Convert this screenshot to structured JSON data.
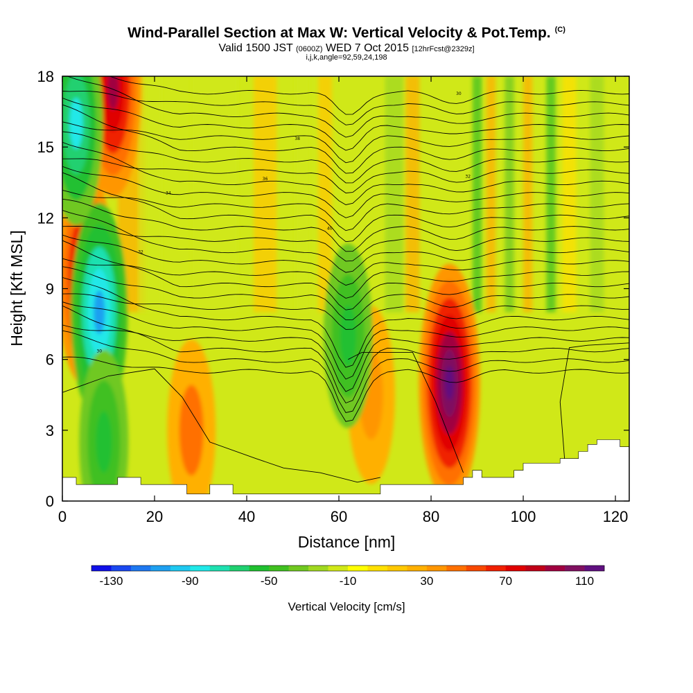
{
  "title": {
    "main": "Wind-Parallel Section at Max W: Vertical Velocity & Pot.Temp.",
    "copyright": "(C)",
    "valid_prefix": "Valid 1500 JST",
    "valid_utc": "(0600Z)",
    "valid_date": "WED 7 Oct 2015",
    "forecast": "[12hrFcst@2329z]",
    "indices": "i,j,k,angle=92,59,24,198"
  },
  "chart_data": {
    "type": "heatmap",
    "title": "Wind-Parallel Section at Max W: Vertical Velocity & Pot.Temp.",
    "xlabel": "Distance [nm]",
    "ylabel": "Height [Kft MSL]",
    "xlim": [
      0,
      123
    ],
    "ylim": [
      0,
      18
    ],
    "x_ticks": [
      "0",
      "20",
      "40",
      "60",
      "80",
      "100",
      "120"
    ],
    "y_ticks": [
      "0",
      "3",
      "6",
      "9",
      "12",
      "15",
      "18"
    ],
    "colorbar": {
      "label": "Vertical Velocity [cm/s]",
      "tick_labels": [
        "-130",
        "-90",
        "-50",
        "-10",
        "30",
        "70",
        "110"
      ],
      "colors": [
        "#1010e8",
        "#1a48f0",
        "#1e78f0",
        "#1ea0f0",
        "#1ec8f0",
        "#20e8e8",
        "#1ee0b0",
        "#20d070",
        "#20c030",
        "#40c020",
        "#70c820",
        "#a0d820",
        "#d0e818",
        "#ffff00",
        "#ffe000",
        "#ffc800",
        "#ffb000",
        "#ff9600",
        "#ff7000",
        "#f84800",
        "#f02000",
        "#e00000",
        "#c00018",
        "#a00040",
        "#801060",
        "#601080"
      ]
    },
    "updraft_cells": [
      {
        "x": 84,
        "height_kft": 5,
        "w_cm_s": 130
      },
      {
        "x": 5,
        "height_kft": 9.5,
        "w_cm_s": 100
      },
      {
        "x": 11,
        "height_kft": 17.5,
        "w_cm_s": 100
      },
      {
        "x": 28,
        "height_kft": 3,
        "w_cm_s": 45
      },
      {
        "x": 67,
        "height_kft": 4.5,
        "w_cm_s": 40
      }
    ],
    "downdraft_cells": [
      {
        "x": 8,
        "height_kft": 8,
        "w_cm_s": -100
      },
      {
        "x": 3,
        "height_kft": 16,
        "w_cm_s": -80
      },
      {
        "x": 9,
        "height_kft": 2.5,
        "w_cm_s": -50
      },
      {
        "x": 62,
        "height_kft": 7,
        "w_cm_s": -50
      }
    ],
    "potential_temperature_contour_labels": [
      "30",
      "32",
      "34",
      "36",
      "38",
      "40"
    ]
  },
  "colors": {
    "background": "#ffffff",
    "field_base": "#d0e818",
    "terrain": "#ffffff",
    "contour": "#000000"
  }
}
